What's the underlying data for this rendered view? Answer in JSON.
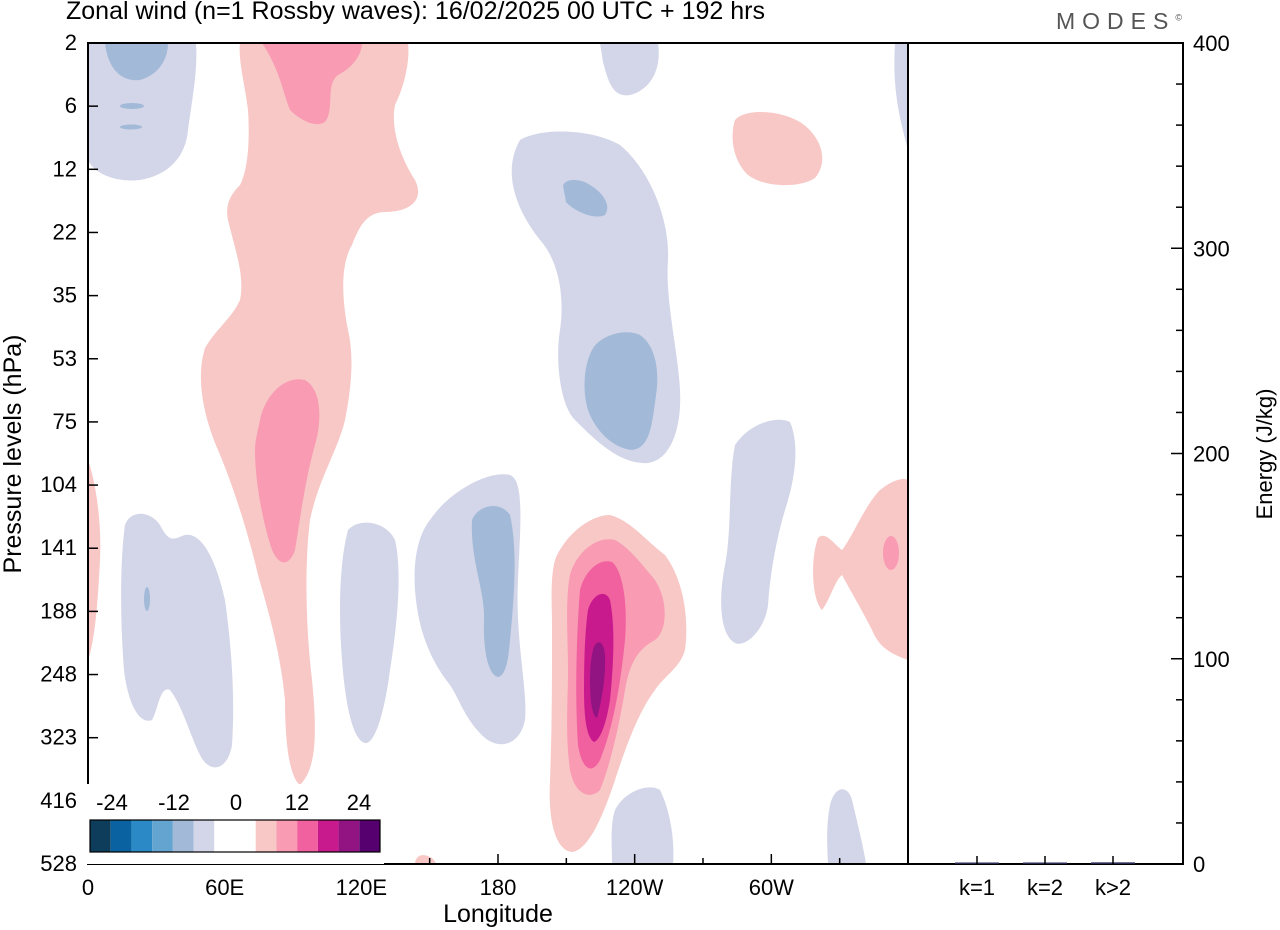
{
  "header": {
    "title": "Zonal wind (n=1 Rossby waves):  16/02/2025  00 UTC  + 192 hrs",
    "brand": "MODES",
    "brand_mark": "©"
  },
  "chart_data": [
    {
      "type": "heatmap",
      "title": "Zonal wind (n=1 Rossby waves):  16/02/2025  00 UTC  + 192 hrs",
      "xlabel": "Longitude",
      "ylabel": "Pressure levels (hPa)",
      "x_ticks": [
        "0",
        "60E",
        "120E",
        "180",
        "120W",
        "60W"
      ],
      "x_tick_lon": [
        0,
        60,
        120,
        180,
        240,
        300
      ],
      "xlim": [
        0,
        360
      ],
      "y_ticks": [
        "2",
        "6",
        "12",
        "22",
        "35",
        "53",
        "75",
        "104",
        "141",
        "188",
        "248",
        "323",
        "416",
        "528"
      ],
      "colorbar": {
        "labels": [
          "-24",
          "-12",
          "0",
          "12",
          "24"
        ],
        "colors": [
          "#0e3d5c",
          "#0b62a0",
          "#2b8ac6",
          "#64a4d0",
          "#a2bad8",
          "#d3d6e8",
          "#ffffff",
          "#ffffff",
          "#f8c8c6",
          "#f89bb3",
          "#f1609f",
          "#c81a8d",
          "#921482",
          "#560070"
        ]
      },
      "contour_colors": {
        "neg_weak": "#d3d6e8",
        "neg_mid": "#a2bad8",
        "pos_weak": "#f8c8c6",
        "pos_mid": "#f89bb3",
        "pos_strong": "#f1609f",
        "pos_max": "#c81a8d",
        "pos_extreme": "#921482"
      }
    },
    {
      "type": "bar",
      "ylabel": "Energy (J/kg)",
      "categories": [
        "k=1",
        "k=2",
        "k>2"
      ],
      "values": [
        0.6,
        0.4,
        0.8
      ],
      "ylim": [
        0,
        400
      ],
      "y_ticks": [
        "0",
        "100",
        "200",
        "300",
        "400"
      ],
      "bar_color": "#2a2a55"
    }
  ]
}
